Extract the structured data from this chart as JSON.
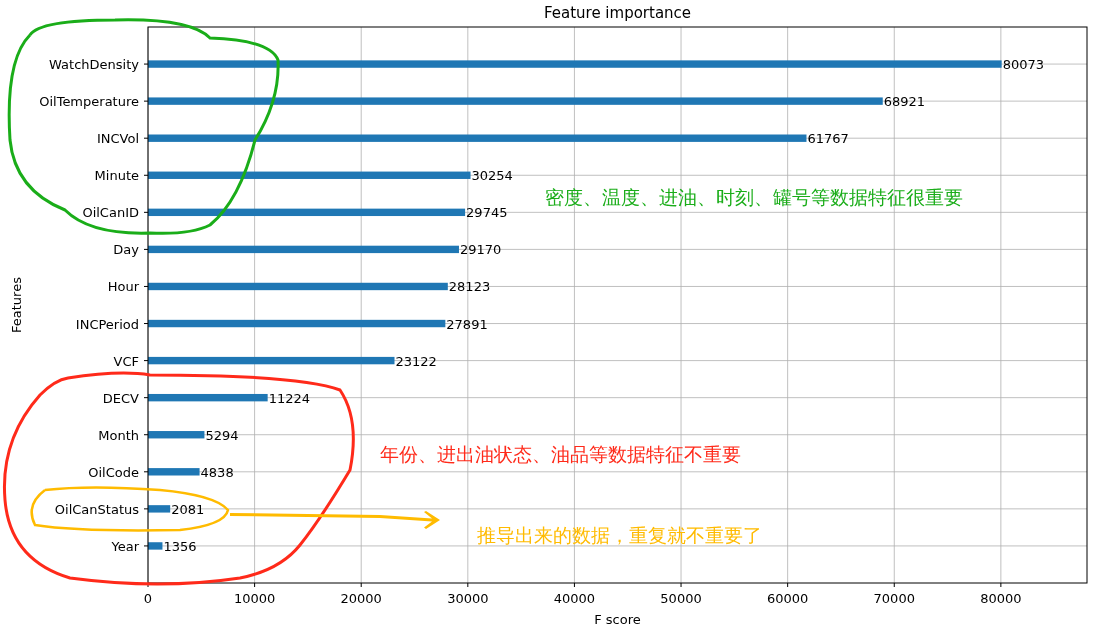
{
  "chart_data": {
    "type": "bar",
    "orientation": "horizontal",
    "title": "Feature importance",
    "xlabel": "F score",
    "ylabel": "Features",
    "categories": [
      "WatchDensity",
      "OilTemperature",
      "INCVol",
      "Minute",
      "OilCanID",
      "Day",
      "Hour",
      "INCPeriod",
      "VCF",
      "DECV",
      "Month",
      "OilCode",
      "OilCanStatus",
      "Year"
    ],
    "values": [
      80073,
      68921,
      61767,
      30254,
      29745,
      29170,
      28123,
      27891,
      23122,
      11224,
      5294,
      4838,
      2081,
      1356
    ],
    "color": "#1f77b4",
    "xlim": [
      0,
      88080
    ],
    "xticks": [
      0,
      10000,
      20000,
      30000,
      40000,
      50000,
      60000,
      70000,
      80000
    ],
    "grid": true,
    "data_labels": true,
    "annotations": [
      "密度、温度、进油、时刻、罐号等数据特征很重要",
      "年份、进出油状态、油品等数据特征不重要",
      "推导出来的数据，重复就不重要了"
    ]
  }
}
